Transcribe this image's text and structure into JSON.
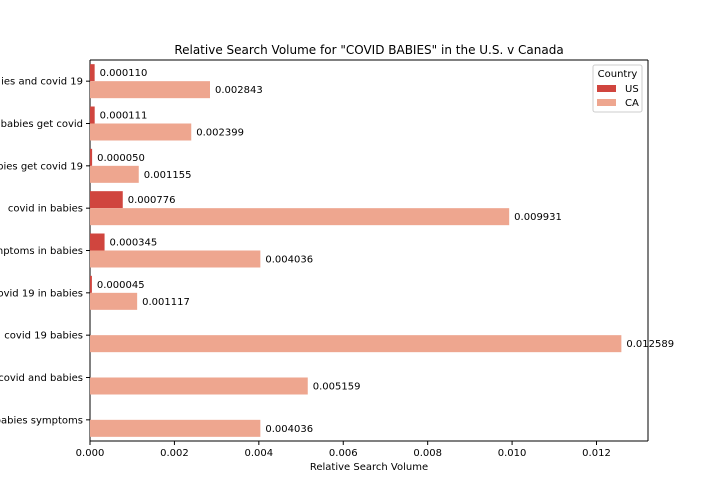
{
  "colors": {
    "US": "#d0453e",
    "CA": "#eea68f"
  },
  "chart_data": {
    "type": "bar",
    "orientation": "horizontal",
    "title": "Relative Search Volume for \"COVID BABIES\" in the U.S. v Canada",
    "xlabel": "Relative Search Volume",
    "ylabel": "",
    "xlim": [
      0,
      0.01322
    ],
    "xticks": [
      "0.000",
      "0.002",
      "0.004",
      "0.006",
      "0.008",
      "0.010",
      "0.012"
    ],
    "categories": [
      "ies and covid 19",
      "babies get covid",
      "bies get covid 19",
      "covid in babies",
      "nptoms in babies",
      "ovid 19 in babies",
      "covid 19 babies",
      "covid and babies",
      "babies symptoms"
    ],
    "series": [
      {
        "name": "US",
        "values": [
          0.00011,
          0.000111,
          5e-05,
          0.000776,
          0.000345,
          4.5e-05,
          null,
          null,
          null
        ],
        "labels": [
          "0.000110",
          "0.000111",
          "0.000050",
          "0.000776",
          "0.000345",
          "0.000045",
          "",
          "",
          ""
        ]
      },
      {
        "name": "CA",
        "values": [
          0.002843,
          0.002399,
          0.001155,
          0.009931,
          0.004036,
          0.001117,
          0.012589,
          0.005159,
          0.004036
        ],
        "labels": [
          "0.002843",
          "0.002399",
          "0.001155",
          "0.009931",
          "0.004036",
          "0.001117",
          "0.012589",
          "0.005159",
          "0.004036"
        ]
      }
    ],
    "legend": {
      "title": "Country",
      "placement": "top-right"
    },
    "grid": false
  }
}
